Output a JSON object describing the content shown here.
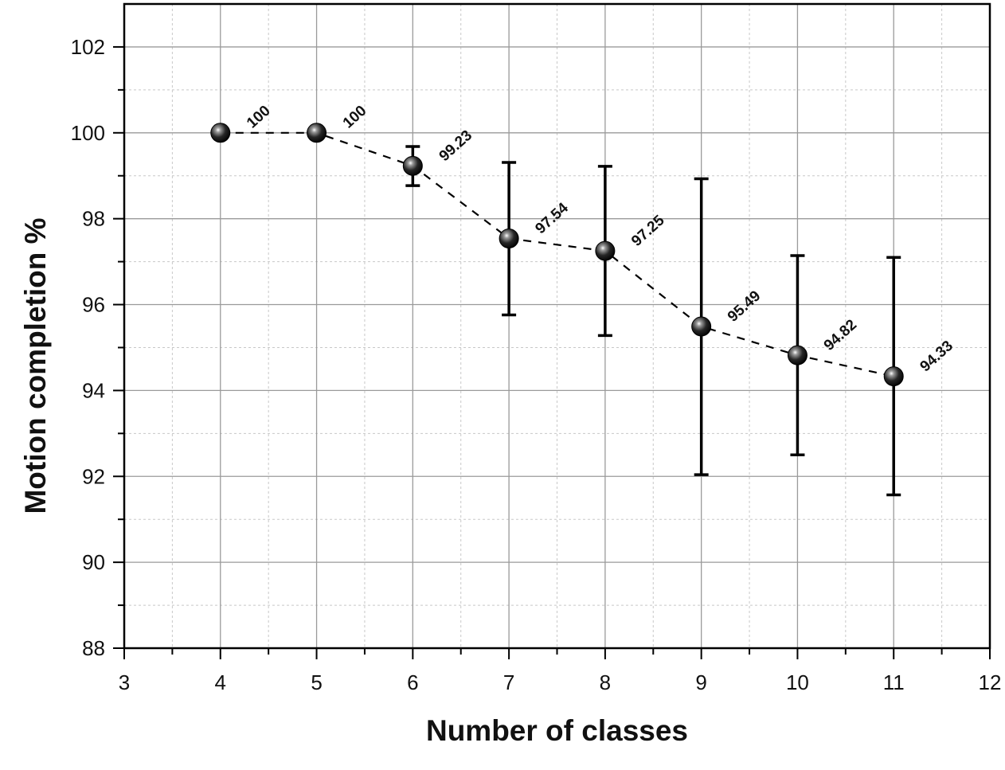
{
  "chart_data": {
    "type": "scatter",
    "xlabel": "Number of classes",
    "ylabel": "Motion completion %",
    "xlim": [
      3,
      12
    ],
    "ylim": [
      88,
      103
    ],
    "xticks": [
      "3",
      "4",
      "5",
      "6",
      "7",
      "8",
      "9",
      "10",
      "11",
      "12"
    ],
    "yticks": [
      "88",
      "90",
      "92",
      "94",
      "96",
      "98",
      "100",
      "102"
    ],
    "grid": true,
    "line_style": "dashed",
    "marker": "sphere",
    "series": [
      {
        "x": [
          4,
          5,
          6,
          7,
          8,
          9,
          10,
          11
        ],
        "y": [
          100,
          100,
          99.23,
          97.54,
          97.25,
          95.49,
          94.82,
          94.33
        ],
        "error_low": [
          100,
          100,
          98.77,
          95.76,
          95.28,
          92.04,
          92.5,
          91.57
        ],
        "error_high": [
          100,
          100,
          99.68,
          99.31,
          99.22,
          98.93,
          97.14,
          97.1
        ],
        "labels": [
          "100",
          "100",
          "99.23",
          "97.54",
          "97.25",
          "95.49",
          "94.82",
          "94.33"
        ]
      }
    ]
  }
}
